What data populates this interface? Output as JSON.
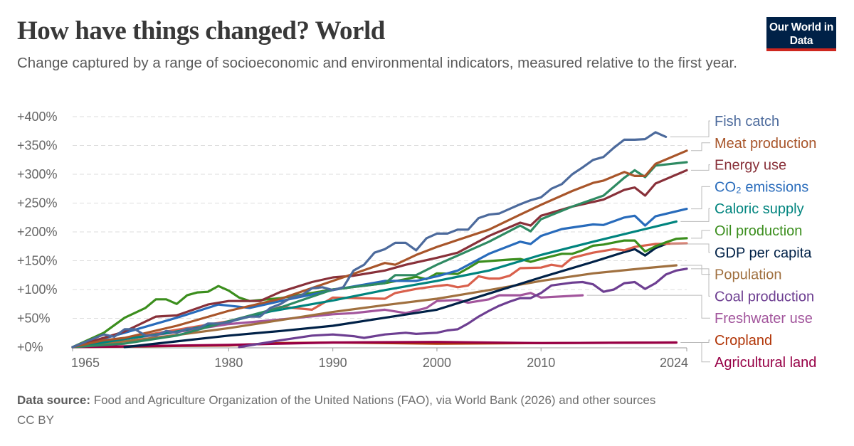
{
  "header": {
    "title": "How have things changed? World",
    "subtitle": "Change captured by a range of socioeconomic and environmental indicators, measured relative to the first year.",
    "logo_text": "Our World in Data"
  },
  "footer": {
    "source_label": "Data source:",
    "source_text": "Food and Agriculture Organization of the United Nations (FAO), via World Bank (2026) and other sources",
    "license": "CC BY"
  },
  "chart_data": {
    "type": "line",
    "title": "How have things changed? World",
    "xlabel": "",
    "ylabel": "",
    "xlim": [
      1965,
      2024
    ],
    "ylim": [
      0,
      400
    ],
    "x_ticks": [
      1965,
      1980,
      1990,
      2000,
      2010,
      2024
    ],
    "y_ticks": [
      "+0%",
      "+50%",
      "+100%",
      "+150%",
      "+200%",
      "+250%",
      "+300%",
      "+350%",
      "+400%"
    ],
    "y_tick_values": [
      0,
      50,
      100,
      150,
      200,
      250,
      300,
      350,
      400
    ],
    "grid": "horizontal dashed",
    "legend_placement": "right (line-end labels)",
    "series": [
      {
        "name": "Fish catch",
        "color": "#4c6a9c",
        "x": [
          1965,
          1968,
          1969,
          1970,
          1971,
          1972,
          1973,
          1974,
          1975,
          1976,
          1977,
          1978,
          1979,
          1980,
          1981,
          1982,
          1983,
          1984,
          1985,
          1986,
          1987,
          1988,
          1989,
          1990,
          1991,
          1992,
          1993,
          1994,
          1995,
          1996,
          1997,
          1998,
          1999,
          2000,
          2001,
          2002,
          2003,
          2004,
          2005,
          2006,
          2007,
          2008,
          2009,
          2010,
          2011,
          2012,
          2013,
          2014,
          2015,
          2016,
          2017,
          2018,
          2019,
          2020,
          2021,
          2022
        ],
        "y": [
          0,
          22,
          18,
          31,
          31,
          20,
          20,
          28,
          25,
          32,
          32,
          41,
          41,
          43,
          49,
          53,
          53,
          68,
          75,
          86,
          90,
          102,
          104,
          99,
          104,
          133,
          143,
          164,
          170,
          181,
          181,
          168,
          189,
          197,
          197,
          204,
          204,
          224,
          230,
          232,
          240,
          248,
          255,
          260,
          275,
          283,
          300,
          312,
          325,
          330,
          346,
          360,
          360,
          361,
          373,
          365
        ]
      },
      {
        "name": "Meat production",
        "color": "#a8552a",
        "x": [
          1965,
          1968,
          1970,
          1975,
          1980,
          1985,
          1990,
          1995,
          1996,
          1998,
          2000,
          2005,
          2008,
          2010,
          2013,
          2015,
          2016,
          2018,
          2019,
          2020,
          2021,
          2024
        ],
        "y": [
          0,
          12,
          16,
          37,
          63,
          84,
          115,
          146,
          143,
          160,
          174,
          204,
          230,
          247,
          271,
          285,
          289,
          304,
          297,
          297,
          318,
          341
        ]
      },
      {
        "name": "",
        "color": "#2e8a62",
        "x": [
          1965,
          1970,
          1975,
          1980,
          1985,
          1990,
          1995,
          1996,
          1998,
          2000,
          2005,
          2008,
          2009,
          2010,
          2013,
          2016,
          2018,
          2019,
          2020,
          2021,
          2024
        ],
        "y": [
          0,
          6,
          20,
          45,
          69,
          100,
          111,
          125,
          125,
          143,
          183,
          211,
          201,
          222,
          244,
          263,
          294,
          307,
          295,
          315,
          321
        ]
      },
      {
        "name": "Energy use",
        "color": "#883039",
        "x": [
          1965,
          1970,
          1973,
          1975,
          1978,
          1980,
          1983,
          1985,
          1988,
          1990,
          1992,
          1995,
          1997,
          2000,
          2002,
          2005,
          2008,
          2009,
          2010,
          2013,
          2016,
          2018,
          2019,
          2020,
          2021,
          2024
        ],
        "y": [
          0,
          27,
          53,
          55,
          74,
          80,
          80,
          96,
          113,
          121,
          124,
          133,
          143,
          155,
          164,
          193,
          216,
          211,
          228,
          244,
          256,
          273,
          277,
          263,
          284,
          307
        ]
      },
      {
        "name": "CO₂ emissions",
        "color": "#286bbb",
        "x": [
          1965,
          1970,
          1975,
          1979,
          1980,
          1982,
          1985,
          1990,
          1995,
          1998,
          2000,
          2002,
          2005,
          2008,
          2009,
          2010,
          2012,
          2015,
          2016,
          2018,
          2019,
          2020,
          2021,
          2024
        ],
        "y": [
          0,
          25,
          51,
          74,
          72,
          68,
          80,
          99,
          115,
          115,
          123,
          133,
          162,
          183,
          179,
          193,
          205,
          213,
          212,
          225,
          228,
          211,
          227,
          240
        ]
      },
      {
        "name": "Caloric supply",
        "color": "#00847e",
        "x": [
          1965,
          1970,
          1975,
          1980,
          1984,
          1990,
          1995,
          2000,
          2005,
          2010,
          2015,
          2020,
          2023
        ],
        "y": [
          0,
          14,
          27,
          44,
          62,
          81,
          99,
          115,
          133,
          160,
          183,
          205,
          218
        ]
      },
      {
        "name": "Oil production",
        "color": "#3b8e1d",
        "x": [
          1965,
          1968,
          1970,
          1972,
          1973,
          1974,
          1975,
          1976,
          1977,
          1978,
          1979,
          1980,
          1981,
          1982,
          1985,
          1990,
          1995,
          1997,
          1998,
          1999,
          2000,
          2002,
          2003,
          2004,
          2007,
          2008,
          2009,
          2010,
          2012,
          2013,
          2014,
          2015,
          2016,
          2018,
          2019,
          2020,
          2021,
          2022,
          2023,
          2024
        ],
        "y": [
          0,
          25,
          51,
          68,
          83,
          83,
          75,
          90,
          95,
          96,
          106,
          98,
          86,
          80,
          85,
          100,
          111,
          118,
          122,
          118,
          128,
          127,
          137,
          148,
          152,
          153,
          148,
          153,
          162,
          162,
          168,
          176,
          178,
          185,
          185,
          166,
          175,
          182,
          188,
          189
        ]
      },
      {
        "name": "",
        "color": "#d9604c",
        "x": [
          1965,
          1970,
          1975,
          1980,
          1983,
          1985,
          1988,
          1990,
          1995,
          1996,
          1998,
          2000,
          2001,
          2002,
          2003,
          2004,
          2005,
          2006,
          2007,
          2008,
          2010,
          2011,
          2012,
          2013,
          2015,
          2017,
          2018,
          2019,
          2021,
          2024
        ],
        "y": [
          0,
          15,
          30,
          45,
          58,
          70,
          65,
          86,
          84,
          94,
          101,
          106,
          108,
          104,
          107,
          123,
          119,
          119,
          124,
          137,
          138,
          143,
          140,
          155,
          164,
          170,
          168,
          174,
          179,
          180
        ]
      },
      {
        "name": "GDP per capita",
        "color": "#002147",
        "x": [
          1970,
          1975,
          1980,
          1985,
          1990,
          1995,
          2000,
          2005,
          2010,
          2015,
          2018,
          2019,
          2020,
          2021,
          2022
        ],
        "y": [
          0,
          10,
          20,
          28,
          37,
          51,
          65,
          93,
          121,
          148,
          165,
          170,
          159,
          172,
          179
        ]
      },
      {
        "name": "Population",
        "color": "#a0703f",
        "x": [
          1965,
          1970,
          1975,
          1980,
          1985,
          1990,
          1995,
          2000,
          2005,
          2010,
          2015,
          2020,
          2023
        ],
        "y": [
          0,
          10,
          21,
          33,
          47,
          61,
          73,
          84,
          99,
          115,
          128,
          137,
          142
        ]
      },
      {
        "name": "Coal production",
        "color": "#6d3e91",
        "x": [
          1981,
          1985,
          1988,
          1990,
          1992,
          1993,
          1995,
          1997,
          1998,
          2000,
          2001,
          2002,
          2003,
          2004,
          2005,
          2006,
          2007,
          2008,
          2009,
          2010,
          2011,
          2013,
          2014,
          2015,
          2016,
          2017,
          2018,
          2019,
          2020,
          2021,
          2022,
          2023,
          2024
        ],
        "y": [
          0,
          12,
          20,
          22,
          19,
          16,
          22,
          25,
          23,
          25,
          29,
          31,
          41,
          53,
          63,
          72,
          79,
          85,
          85,
          94,
          107,
          112,
          113,
          109,
          96,
          100,
          111,
          113,
          101,
          111,
          126,
          133,
          136
        ]
      },
      {
        "name": "Freshwater use",
        "color": "#a2559c",
        "x": [
          1965,
          1970,
          1975,
          1980,
          1985,
          1990,
          1992,
          1995,
          1997,
          1999,
          2000,
          2002,
          2003,
          2005,
          2006,
          2008,
          2009,
          2010,
          2014
        ],
        "y": [
          0,
          14,
          26,
          40,
          48,
          57,
          59,
          65,
          59,
          68,
          80,
          82,
          77,
          83,
          90,
          90,
          94,
          86,
          90
        ]
      },
      {
        "name": "Agricultural land",
        "color": "#970046",
        "x": [
          1965,
          1980,
          1990,
          2000,
          2010,
          2023
        ],
        "y": [
          0,
          4,
          8,
          9,
          7,
          8
        ]
      },
      {
        "name": "Cropland",
        "color": "#b13507",
        "x": [
          1965,
          1980,
          1985,
          1990,
          2000,
          2010,
          2023
        ],
        "y": [
          0,
          3,
          7,
          8,
          6,
          7,
          8
        ]
      }
    ],
    "legend_order": [
      "Fish catch",
      "Meat production",
      "Energy use",
      "CO₂ emissions",
      "Caloric supply",
      "Oil production",
      "GDP per capita",
      "Population",
      "Coal production",
      "Freshwater use",
      "Cropland",
      "Agricultural land"
    ]
  }
}
